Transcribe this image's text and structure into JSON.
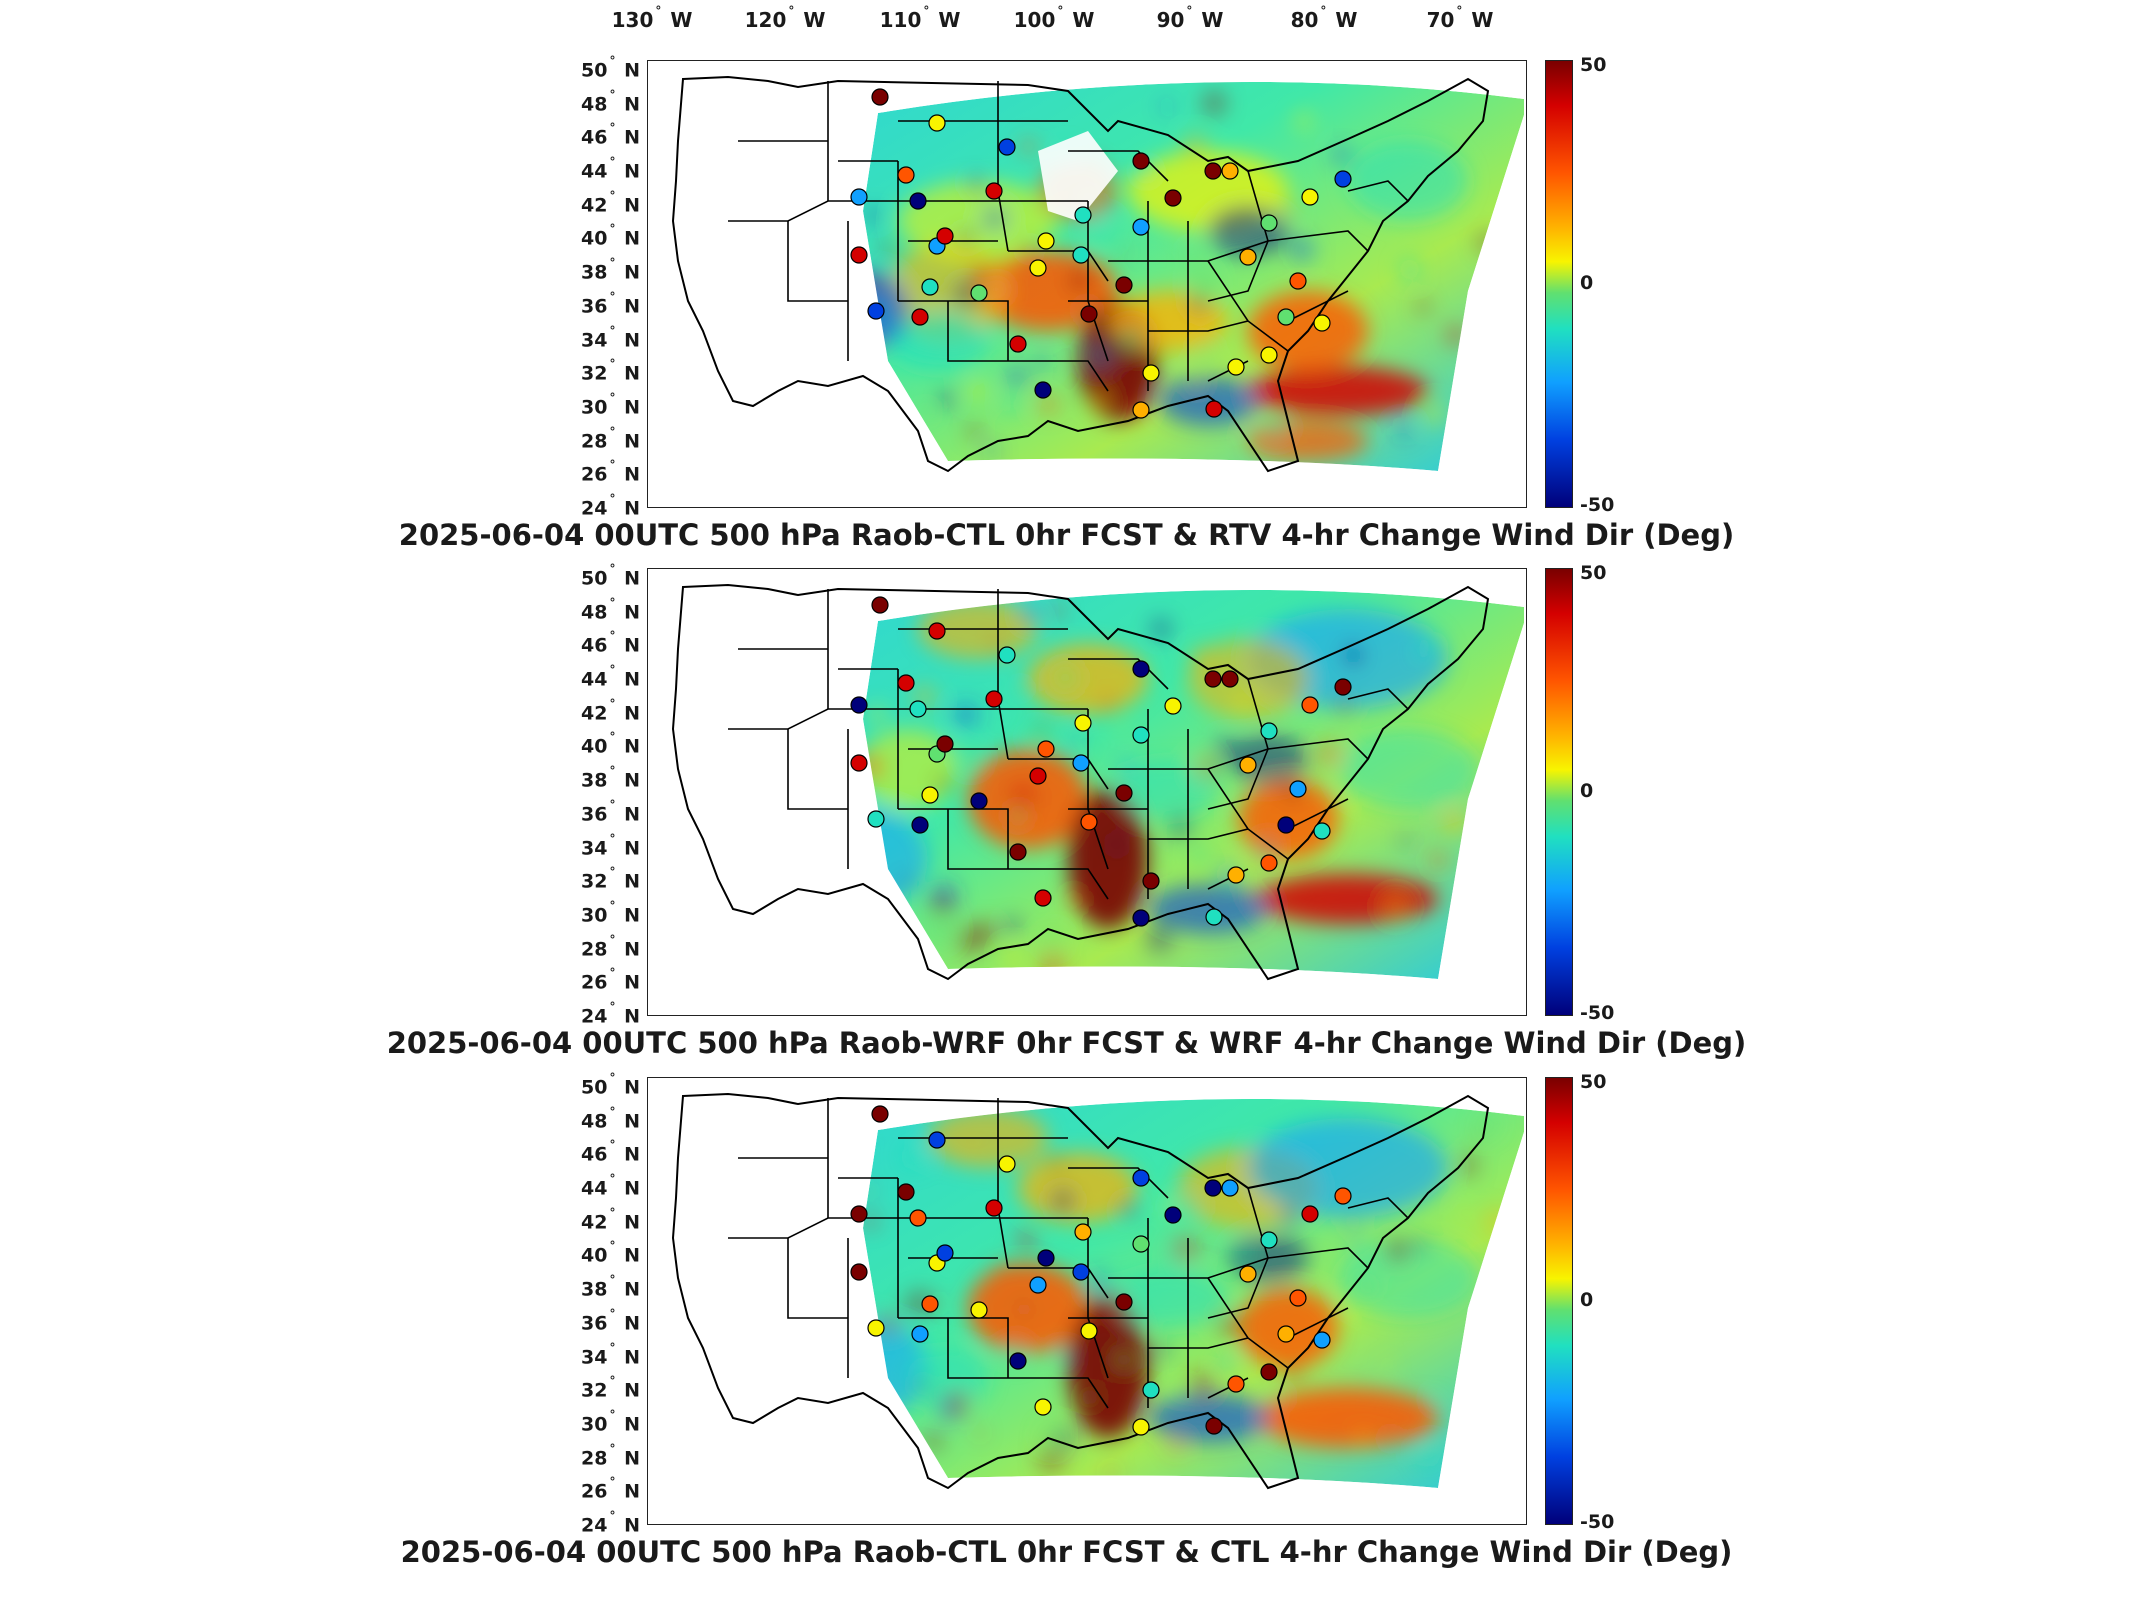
{
  "longitude_labels": [
    {
      "deg": "130",
      "hem": "W"
    },
    {
      "deg": "120",
      "hem": "W"
    },
    {
      "deg": "110",
      "hem": "W"
    },
    {
      "deg": "100",
      "hem": "W"
    },
    {
      "deg": "90",
      "hem": "W"
    },
    {
      "deg": "80",
      "hem": "W"
    },
    {
      "deg": "70",
      "hem": "W"
    }
  ],
  "latitude_labels": [
    {
      "deg": "50",
      "hem": "N"
    },
    {
      "deg": "48",
      "hem": "N"
    },
    {
      "deg": "46",
      "hem": "N"
    },
    {
      "deg": "44",
      "hem": "N"
    },
    {
      "deg": "42",
      "hem": "N"
    },
    {
      "deg": "40",
      "hem": "N"
    },
    {
      "deg": "38",
      "hem": "N"
    },
    {
      "deg": "36",
      "hem": "N"
    },
    {
      "deg": "34",
      "hem": "N"
    },
    {
      "deg": "32",
      "hem": "N"
    },
    {
      "deg": "30",
      "hem": "N"
    },
    {
      "deg": "28",
      "hem": "N"
    },
    {
      "deg": "26",
      "hem": "N"
    },
    {
      "deg": "24",
      "hem": "N"
    }
  ],
  "colorbar": {
    "max_label": "50",
    "mid_label": "0",
    "min_label": "-50",
    "colors": [
      "#7a0000",
      "#d40000",
      "#ff5500",
      "#ffb000",
      "#f8f400",
      "#60e070",
      "#20e0c0",
      "#10a0ff",
      "#0040e0",
      "#00007a"
    ]
  },
  "panels": [
    {
      "title": "2025-06-04 00UTC 500 hPa Raob-CTL 0hr FCST & RTV 4-hr Change Wind Dir (Deg)"
    },
    {
      "title": "2025-06-04 00UTC 500 hPa Raob-WRF 0hr FCST & WRF 4-hr Change Wind Dir (Deg)"
    },
    {
      "title": "2025-06-04 00UTC 500 hPa Raob-CTL 0hr FCST & CTL 4-hr Change Wind Dir (Deg)"
    }
  ],
  "map_style": {
    "domain_base_color": "#40e8a8",
    "border_color": "#000000",
    "station_marker_outline": "#000000"
  }
}
